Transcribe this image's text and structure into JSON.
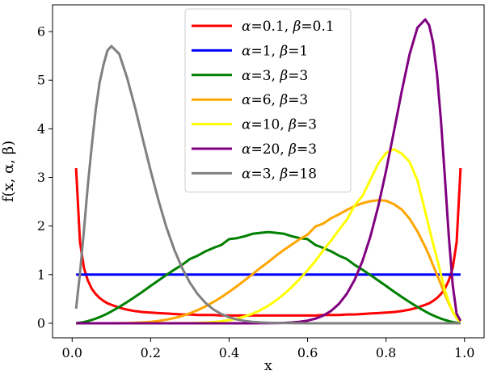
{
  "chart_data": {
    "type": "line",
    "title": "",
    "xlabel": "x",
    "ylabel": "f(x, α, β)",
    "xlim": [
      -0.05,
      1.05
    ],
    "ylim": [
      -0.3,
      6.55
    ],
    "xticks": [
      0.0,
      0.2,
      0.4,
      0.6,
      0.8,
      1.0
    ],
    "xtick_labels": [
      "0.0",
      "0.2",
      "0.4",
      "0.6",
      "0.8",
      "1.0"
    ],
    "yticks": [
      0,
      1,
      2,
      3,
      4,
      5,
      6
    ],
    "ytick_labels": [
      "0",
      "1",
      "2",
      "3",
      "4",
      "5",
      "6"
    ],
    "grid": false,
    "legend_position": "top-center",
    "x": [
      0.01,
      0.02,
      0.03,
      0.04,
      0.05,
      0.06,
      0.07,
      0.08,
      0.09,
      0.1,
      0.12,
      0.14,
      0.16,
      0.18,
      0.2,
      0.22,
      0.24,
      0.26,
      0.28,
      0.3,
      0.32,
      0.34,
      0.36,
      0.38,
      0.4,
      0.42,
      0.44,
      0.46,
      0.48,
      0.5,
      0.52,
      0.54,
      0.56,
      0.58,
      0.6,
      0.62,
      0.64,
      0.66,
      0.68,
      0.7,
      0.72,
      0.74,
      0.76,
      0.78,
      0.8,
      0.82,
      0.84,
      0.86,
      0.88,
      0.9,
      0.91,
      0.92,
      0.93,
      0.94,
      0.95,
      0.96,
      0.97,
      0.98,
      0.99
    ],
    "series": [
      {
        "name": "α=0.1, β=0.1",
        "color": "#ff0000",
        "values": [
          3.19,
          1.67,
          1.14,
          0.88,
          0.71,
          0.6,
          0.52,
          0.46,
          0.41,
          0.38,
          0.32,
          0.28,
          0.25,
          0.23,
          0.22,
          0.21,
          0.2,
          0.19,
          0.18,
          0.18,
          0.17,
          0.17,
          0.17,
          0.16,
          0.16,
          0.16,
          0.16,
          0.16,
          0.16,
          0.16,
          0.16,
          0.16,
          0.16,
          0.16,
          0.16,
          0.16,
          0.17,
          0.17,
          0.17,
          0.18,
          0.18,
          0.19,
          0.2,
          0.21,
          0.22,
          0.23,
          0.25,
          0.28,
          0.32,
          0.38,
          0.41,
          0.46,
          0.52,
          0.6,
          0.71,
          0.88,
          1.14,
          1.67,
          3.19
        ]
      },
      {
        "name": "α=1, β=1",
        "color": "#0000ff",
        "values": [
          1,
          1,
          1,
          1,
          1,
          1,
          1,
          1,
          1,
          1,
          1,
          1,
          1,
          1,
          1,
          1,
          1,
          1,
          1,
          1,
          1,
          1,
          1,
          1,
          1,
          1,
          1,
          1,
          1,
          1,
          1,
          1,
          1,
          1,
          1,
          1,
          1,
          1,
          1,
          1,
          1,
          1,
          1,
          1,
          1,
          1,
          1,
          1,
          1,
          1,
          1,
          1,
          1,
          1,
          1,
          1,
          1,
          1,
          1
        ]
      },
      {
        "name": "α=3, β=3",
        "color": "#008000",
        "values": [
          0.003,
          0.011,
          0.025,
          0.044,
          0.068,
          0.095,
          0.127,
          0.162,
          0.2,
          0.243,
          0.335,
          0.436,
          0.542,
          0.652,
          0.768,
          0.881,
          0.993,
          1.1,
          1.2,
          1.32,
          1.39,
          1.48,
          1.55,
          1.61,
          1.73,
          1.75,
          1.79,
          1.84,
          1.86,
          1.875,
          1.86,
          1.84,
          1.79,
          1.75,
          1.73,
          1.61,
          1.55,
          1.48,
          1.39,
          1.32,
          1.2,
          1.1,
          0.993,
          0.881,
          0.768,
          0.652,
          0.542,
          0.436,
          0.335,
          0.243,
          0.2,
          0.162,
          0.127,
          0.095,
          0.068,
          0.044,
          0.025,
          0.011,
          0.003
        ]
      },
      {
        "name": "α=6, β=3",
        "color": "#ffa500",
        "values": [
          0,
          0,
          0,
          0,
          0,
          0,
          0,
          0,
          0,
          0.0008,
          0.002,
          0.004,
          0.009,
          0.017,
          0.029,
          0.047,
          0.073,
          0.106,
          0.149,
          0.204,
          0.27,
          0.347,
          0.436,
          0.536,
          0.645,
          0.762,
          0.885,
          1.01,
          1.14,
          1.26,
          1.39,
          1.51,
          1.62,
          1.73,
          1.82,
          1.99,
          2.05,
          2.16,
          2.24,
          2.33,
          2.41,
          2.47,
          2.51,
          2.53,
          2.52,
          2.45,
          2.34,
          2.15,
          1.89,
          1.57,
          1.39,
          1.19,
          0.999,
          0.797,
          0.6,
          0.408,
          0.236,
          0.103,
          0.025
        ]
      },
      {
        "name": "α=10, β=3",
        "color": "#ffff00",
        "values": [
          0,
          0,
          0,
          0,
          0,
          0,
          0,
          0,
          0,
          0,
          0,
          0,
          0,
          0,
          0,
          0.0001,
          0.0003,
          0.0008,
          0.002,
          0.004,
          0.008,
          0.015,
          0.025,
          0.04,
          0.063,
          0.095,
          0.139,
          0.196,
          0.27,
          0.361,
          0.471,
          0.599,
          0.746,
          0.911,
          1.09,
          1.28,
          1.5,
          1.7,
          1.92,
          2.13,
          2.42,
          2.62,
          2.95,
          3.28,
          3.5,
          3.58,
          3.49,
          3.32,
          2.94,
          2.29,
          1.96,
          1.63,
          1.33,
          1.0,
          0.677,
          0.432,
          0.237,
          0.102,
          0.024
        ]
      },
      {
        "name": "α=20, β=3",
        "color": "#800080",
        "values": [
          0,
          0,
          0,
          0,
          0,
          0,
          0,
          0,
          0,
          0,
          0,
          0,
          0,
          0,
          0,
          0,
          0,
          0,
          0,
          0,
          0,
          0,
          0,
          0,
          0,
          0,
          0.0001,
          0.0003,
          0.0007,
          0.0017,
          0.004,
          0.008,
          0.016,
          0.03,
          0.054,
          0.094,
          0.157,
          0.254,
          0.398,
          0.605,
          0.893,
          1.28,
          1.78,
          2.4,
          3.13,
          3.94,
          4.77,
          5.53,
          6.08,
          6.25,
          6.13,
          5.77,
          5.12,
          4.17,
          3.01,
          1.79,
          0.783,
          0.192,
          0.05
        ]
      },
      {
        "name": "α=3, β=18",
        "color": "#808080",
        "values": [
          0.3,
          1.03,
          1.91,
          2.84,
          3.65,
          4.39,
          4.95,
          5.32,
          5.61,
          5.7,
          5.54,
          5.05,
          4.45,
          3.79,
          3.14,
          2.53,
          1.98,
          1.52,
          1.14,
          0.836,
          0.597,
          0.417,
          0.284,
          0.19,
          0.123,
          0.078,
          0.048,
          0.029,
          0.017,
          0.01,
          0.005,
          0.003,
          0.001,
          0.0006,
          0.0003,
          0.0001,
          0,
          0,
          0,
          0,
          0,
          0,
          0,
          0,
          0,
          0,
          0,
          0,
          0,
          0,
          0,
          0,
          0,
          0,
          0,
          0,
          0,
          0,
          0
        ]
      }
    ]
  }
}
